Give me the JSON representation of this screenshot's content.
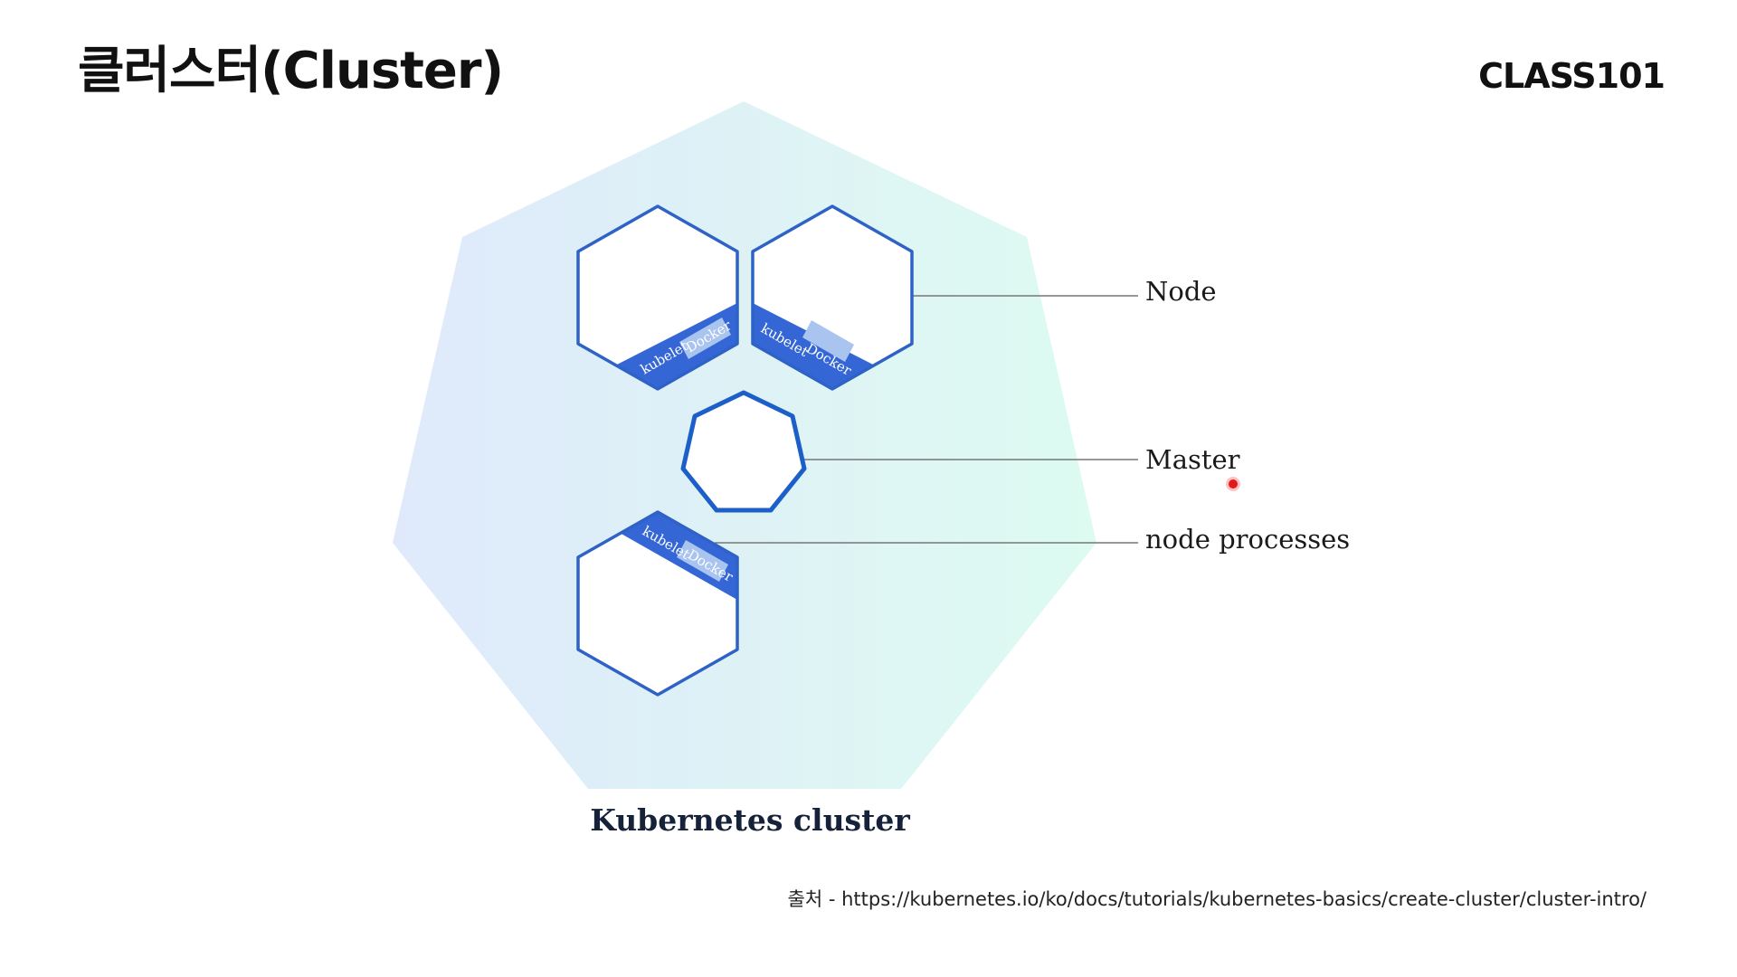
{
  "slide": {
    "title": "클러스터(Cluster)",
    "brand": "CLASS101"
  },
  "diagram": {
    "caption": "Kubernetes cluster",
    "labels": {
      "node": "Node",
      "master": "Master",
      "node_processes": "node processes"
    },
    "strip_labels": {
      "kubelet": "kubelet",
      "docker": "Docker"
    },
    "colors": {
      "node_outline": "#2f62c6",
      "strip_dark": "#3466d6",
      "strip_light": "#a9c4ef",
      "master_outline": "#1d5fc9",
      "cluster_gradient_left": "#dfe9fb",
      "cluster_gradient_right": "#ddfbf1"
    }
  },
  "source": "출처 - https://kubernetes.io/ko/docs/tutorials/kubernetes-basics/create-cluster/cluster-intro/"
}
